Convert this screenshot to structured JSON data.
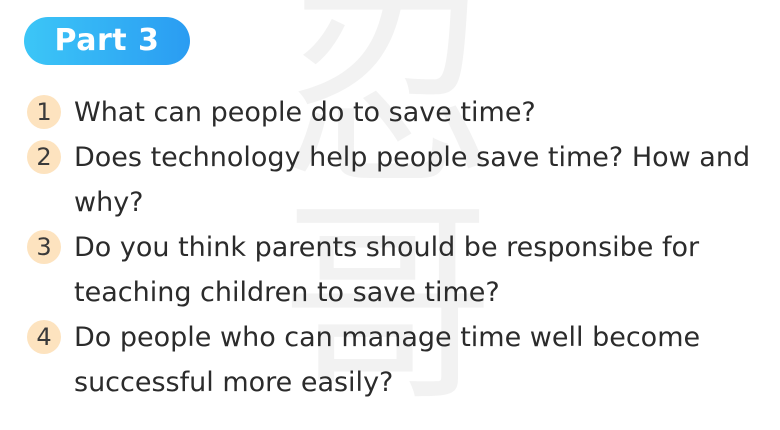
{
  "badge": {
    "label": "Part 3"
  },
  "watermark": {
    "chars": [
      "忍",
      "哥"
    ],
    "color": "#d9d9d9"
  },
  "colors": {
    "badge_start": "#3cc6f7",
    "badge_end": "#2a9cf2",
    "number_bg": "#fde3bf",
    "text": "#2b2b2b"
  },
  "questions": [
    {
      "number": "1",
      "text": "What can people do to save time?"
    },
    {
      "number": "2",
      "text": "Does technology help people save time? How and why?"
    },
    {
      "number": "3",
      "text": "Do you think parents should be responsibe for teaching children to save time?"
    },
    {
      "number": "4",
      "text": "Do people who can manage time well become successful more easily?"
    }
  ]
}
